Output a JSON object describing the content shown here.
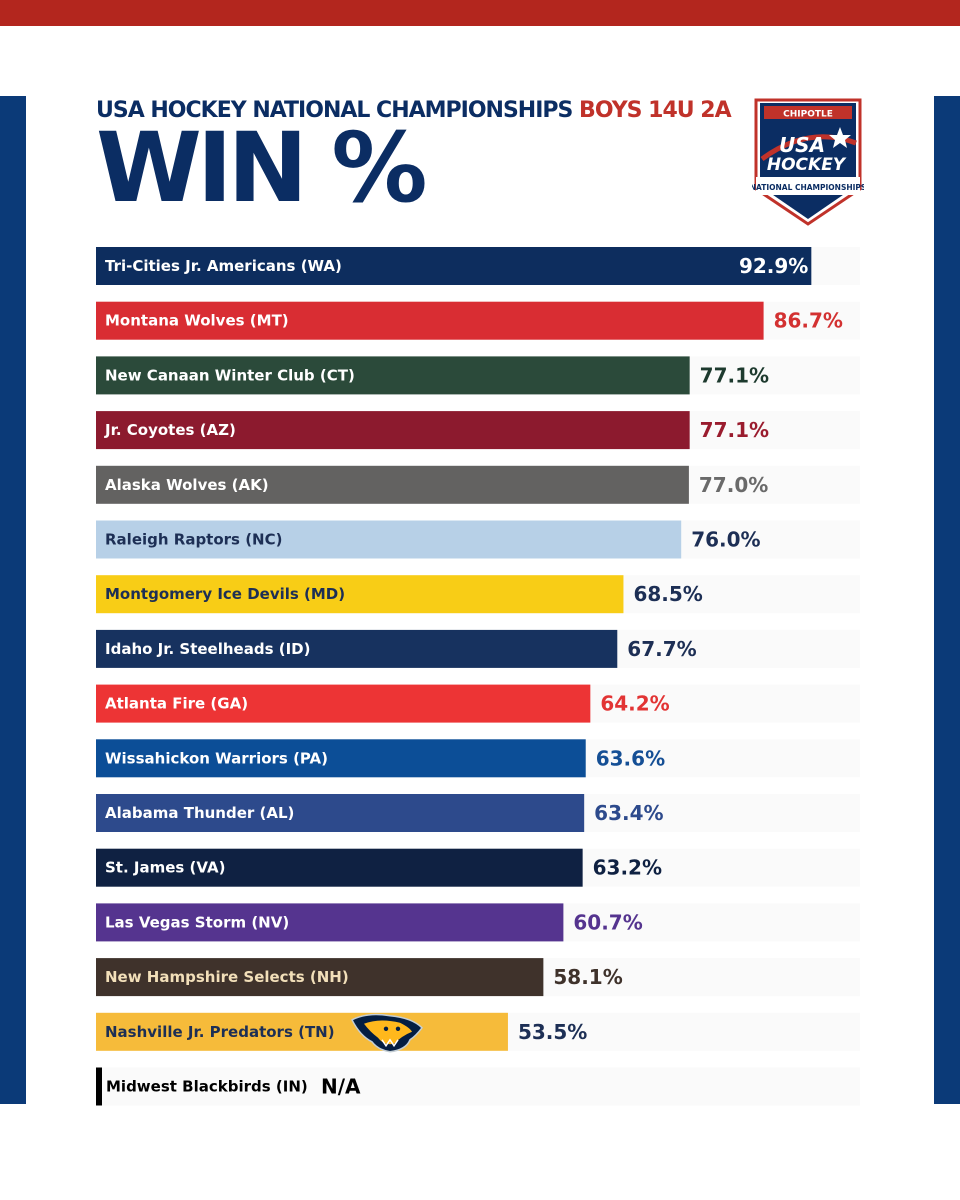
{
  "header": {
    "title_part1": "USA HOCKEY NATIONAL CHAMPIONSHIPS",
    "title_part2": "BOYS 14U 2A",
    "big_title": "WIN %"
  },
  "logo": {
    "top_text": "CHIPOTLE",
    "line1": "USA",
    "line2": "HOCKEY",
    "line3": "NATIONAL CHAMPIONSHIPS"
  },
  "colors": {
    "top_band": "#b3261e",
    "side_bands": "#0b3a78",
    "title_navy": "#0b2d63",
    "title_red": "#c0322a"
  },
  "chart_data": {
    "type": "bar",
    "orientation": "horizontal",
    "value_unit": "%",
    "xlim": [
      0,
      100
    ],
    "grid": false,
    "legend": "none",
    "categories": [
      "Tri-Cities Jr. Americans (WA)",
      "Montana Wolves (MT)",
      "New Canaan Winter Club (CT)",
      "Jr. Coyotes (AZ)",
      "Alaska Wolves (AK)",
      "Raleigh Raptors (NC)",
      "Montgomery Ice Devils (MD)",
      "Idaho Jr. Steelheads (ID)",
      "Atlanta Fire (GA)",
      "Wissahickon Warriors (PA)",
      "Alabama Thunder (AL)",
      "St. James (VA)",
      "Las Vegas Storm (NV)",
      "New Hampshire Selects (NH)",
      "Nashville Jr. Predators (TN)",
      "Midwest Blackbirds (IN)"
    ],
    "values": [
      92.9,
      86.7,
      77.1,
      77.1,
      77.0,
      76.0,
      68.5,
      67.7,
      64.2,
      63.6,
      63.4,
      63.2,
      60.7,
      58.1,
      53.5,
      null
    ],
    "value_labels": [
      "92.9%",
      "86.7%",
      "77.1%",
      "77.1%",
      "77.0%",
      "76.0%",
      "68.5%",
      "67.7%",
      "64.2%",
      "63.6%",
      "63.4%",
      "63.2%",
      "60.7%",
      "58.1%",
      "53.5%",
      "N/A"
    ],
    "bar_colors": [
      "#0d2d5e",
      "#d92d33",
      "#2b4a3a",
      "#8c1a2e",
      "#636261",
      "#b7d0e7",
      "#f8cd16",
      "#17325f",
      "#ed3435",
      "#0c4e97",
      "#2d4a8c",
      "#0f2142",
      "#55348f",
      "#3f322b",
      "#f6bb3a",
      "#000000"
    ],
    "label_colors": [
      "#ffffff",
      "#ffffff",
      "#ffffff",
      "#ffffff",
      "#ffffff",
      "#1d2f55",
      "#1d2f55",
      "#ffffff",
      "#ffffff",
      "#ffffff",
      "#ffffff",
      "#ffffff",
      "#ffffff",
      "#f2dfb9",
      "#1d2f55",
      "#000000"
    ],
    "value_colors": [
      "#ffffff",
      "#d33131",
      "#1d3a2e",
      "#9a1c2e",
      "#6a6a6a",
      "#1d2f55",
      "#1d2f55",
      "#1d2f55",
      "#e23434",
      "#154f95",
      "#2d4a8c",
      "#0f2142",
      "#55348f",
      "#3f322b",
      "#1d2f55",
      "#000000"
    ],
    "value_inside_bar": [
      true,
      false,
      false,
      false,
      false,
      false,
      false,
      false,
      false,
      false,
      false,
      false,
      false,
      false,
      false,
      false
    ],
    "bar_icon": [
      null,
      null,
      null,
      null,
      null,
      null,
      null,
      null,
      null,
      null,
      null,
      null,
      null,
      null,
      "predators-logo-icon",
      null
    ]
  }
}
